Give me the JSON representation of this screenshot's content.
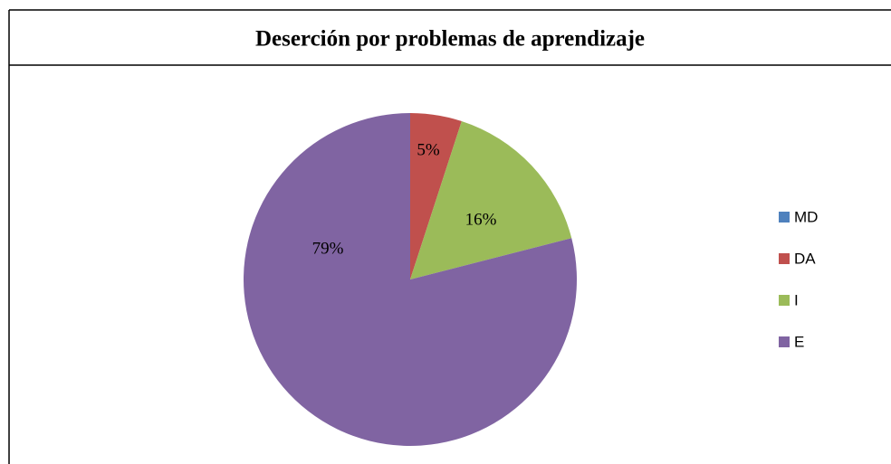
{
  "chart_data": {
    "type": "pie",
    "title": "Deserción por problemas de aprendizaje",
    "categories": [
      "MD",
      "DA",
      "I",
      "E"
    ],
    "values": [
      0,
      5,
      16,
      79
    ],
    "value_labels": [
      null,
      "5%",
      "16%",
      "79%"
    ],
    "colors": [
      "#4f81bd",
      "#c0504d",
      "#9bbb59",
      "#8064a2"
    ],
    "legend": "right"
  }
}
